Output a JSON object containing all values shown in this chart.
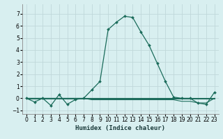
{
  "title": "",
  "xlabel": "Humidex (Indice chaleur)",
  "background_color": "#d8eff0",
  "grid_color": "#c0d8da",
  "line_color": "#1a6b5a",
  "x": [
    0,
    1,
    2,
    3,
    4,
    5,
    6,
    7,
    8,
    9,
    10,
    11,
    12,
    13,
    14,
    15,
    16,
    17,
    18,
    19,
    20,
    21,
    22,
    23
  ],
  "y_main": [
    0.0,
    -0.3,
    0.0,
    -0.6,
    0.3,
    -0.5,
    -0.1,
    0.0,
    0.7,
    1.4,
    5.7,
    6.3,
    6.8,
    6.7,
    5.5,
    4.4,
    2.9,
    1.4,
    0.1,
    0.0,
    0.0,
    -0.4,
    -0.5,
    0.5
  ],
  "y_flat1": [
    0.0,
    0.0,
    0.0,
    0.0,
    0.0,
    0.0,
    0.0,
    0.0,
    0.0,
    0.0,
    0.0,
    0.0,
    0.0,
    0.0,
    0.0,
    0.0,
    0.0,
    0.0,
    0.0,
    0.0,
    0.0,
    0.0,
    0.0,
    0.0
  ],
  "y_flat2": [
    0.0,
    0.0,
    0.0,
    0.0,
    0.0,
    0.0,
    0.0,
    0.0,
    -0.12,
    -0.12,
    -0.12,
    -0.12,
    -0.12,
    -0.12,
    -0.12,
    -0.12,
    -0.12,
    -0.12,
    -0.12,
    -0.25,
    -0.25,
    -0.38,
    -0.38,
    0.0
  ],
  "y_flat3": [
    -0.06,
    -0.06,
    -0.06,
    -0.06,
    -0.06,
    -0.06,
    -0.06,
    -0.06,
    -0.06,
    -0.06,
    -0.06,
    -0.06,
    -0.06,
    -0.06,
    -0.06,
    -0.06,
    -0.06,
    -0.06,
    -0.06,
    -0.06,
    -0.06,
    -0.06,
    -0.06,
    -0.06
  ],
  "ylim": [
    -1.3,
    7.8
  ],
  "xlim": [
    -0.5,
    23.5
  ],
  "yticks": [
    -1,
    0,
    1,
    2,
    3,
    4,
    5,
    6,
    7
  ],
  "xticks": [
    0,
    1,
    2,
    3,
    4,
    5,
    6,
    7,
    8,
    9,
    10,
    11,
    12,
    13,
    14,
    15,
    16,
    17,
    18,
    19,
    20,
    21,
    22,
    23
  ],
  "tick_fontsize": 5.5,
  "xlabel_fontsize": 6.5
}
